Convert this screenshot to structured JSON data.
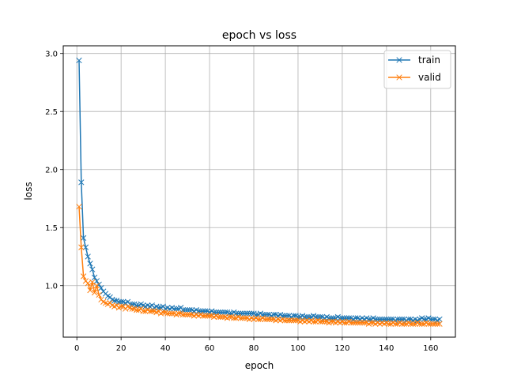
{
  "colors": {
    "train": "#1f77b4",
    "valid": "#ff7f0e",
    "grid": "#b0b0b0"
  },
  "chart_data": {
    "type": "line",
    "title": "epoch vs loss",
    "xlabel": "epoch",
    "ylabel": "loss",
    "xlim": [
      -6.15,
      171.15
    ],
    "ylim": [
      0.556,
      3.066
    ],
    "xticks": [
      0,
      20,
      40,
      60,
      80,
      100,
      120,
      140,
      160
    ],
    "yticks": [
      1.0,
      1.5,
      2.0,
      2.5,
      3.0
    ],
    "xtick_labels": [
      "0",
      "20",
      "40",
      "60",
      "80",
      "100",
      "120",
      "140",
      "160"
    ],
    "ytick_labels": [
      "1.0",
      "1.5",
      "2.0",
      "2.5",
      "3.0"
    ],
    "grid": true,
    "legend": "top-right",
    "marker": "x",
    "x": [
      1,
      2,
      3,
      4,
      5,
      6,
      7,
      8,
      9,
      10,
      11,
      12,
      13,
      14,
      15,
      16,
      17,
      18,
      19,
      20,
      21,
      22,
      23,
      24,
      25,
      26,
      27,
      28,
      29,
      30,
      31,
      32,
      33,
      34,
      35,
      36,
      37,
      38,
      39,
      40,
      41,
      42,
      43,
      44,
      45,
      46,
      47,
      48,
      49,
      50,
      51,
      52,
      53,
      54,
      55,
      56,
      57,
      58,
      59,
      60,
      61,
      62,
      63,
      64,
      65,
      66,
      67,
      68,
      69,
      70,
      71,
      72,
      73,
      74,
      75,
      76,
      77,
      78,
      79,
      80,
      81,
      82,
      83,
      84,
      85,
      86,
      87,
      88,
      89,
      90,
      91,
      92,
      93,
      94,
      95,
      96,
      97,
      98,
      99,
      100,
      101,
      102,
      103,
      104,
      105,
      106,
      107,
      108,
      109,
      110,
      111,
      112,
      113,
      114,
      115,
      116,
      117,
      118,
      119,
      120,
      121,
      122,
      123,
      124,
      125,
      126,
      127,
      128,
      129,
      130,
      131,
      132,
      133,
      134,
      135,
      136,
      137,
      138,
      139,
      140,
      141,
      142,
      143,
      144,
      145,
      146,
      147,
      148,
      149,
      150,
      151,
      152,
      153,
      154,
      155,
      156,
      157,
      158,
      159,
      160,
      161,
      162,
      163,
      164
    ],
    "series": [
      {
        "name": "train",
        "values": [
          2.94,
          1.89,
          1.41,
          1.33,
          1.25,
          1.19,
          1.14,
          1.07,
          1.04,
          1.01,
          0.98,
          0.95,
          0.93,
          0.91,
          0.9,
          0.88,
          0.87,
          0.87,
          0.86,
          0.86,
          0.86,
          0.85,
          0.86,
          0.84,
          0.84,
          0.84,
          0.83,
          0.83,
          0.84,
          0.83,
          0.82,
          0.83,
          0.82,
          0.83,
          0.81,
          0.82,
          0.81,
          0.81,
          0.82,
          0.8,
          0.81,
          0.8,
          0.81,
          0.8,
          0.8,
          0.8,
          0.81,
          0.79,
          0.79,
          0.79,
          0.79,
          0.79,
          0.78,
          0.79,
          0.78,
          0.78,
          0.78,
          0.78,
          0.78,
          0.77,
          0.78,
          0.77,
          0.77,
          0.77,
          0.77,
          0.77,
          0.77,
          0.77,
          0.76,
          0.76,
          0.77,
          0.76,
          0.76,
          0.76,
          0.76,
          0.76,
          0.76,
          0.76,
          0.76,
          0.76,
          0.75,
          0.75,
          0.76,
          0.75,
          0.75,
          0.75,
          0.75,
          0.74,
          0.75,
          0.75,
          0.74,
          0.75,
          0.74,
          0.74,
          0.74,
          0.74,
          0.73,
          0.74,
          0.74,
          0.73,
          0.73,
          0.74,
          0.73,
          0.73,
          0.73,
          0.73,
          0.74,
          0.73,
          0.73,
          0.73,
          0.73,
          0.72,
          0.73,
          0.72,
          0.72,
          0.72,
          0.72,
          0.73,
          0.72,
          0.72,
          0.72,
          0.72,
          0.72,
          0.72,
          0.71,
          0.72,
          0.72,
          0.71,
          0.72,
          0.71,
          0.72,
          0.71,
          0.71,
          0.72,
          0.71,
          0.71,
          0.71,
          0.71,
          0.71,
          0.71,
          0.71,
          0.71,
          0.71,
          0.7,
          0.71,
          0.71,
          0.71,
          0.71,
          0.7,
          0.71,
          0.71,
          0.7,
          0.71,
          0.7,
          0.71,
          0.72,
          0.71,
          0.71,
          0.72,
          0.71,
          0.71,
          0.71,
          0.7,
          0.71
        ]
      },
      {
        "name": "valid",
        "values": [
          1.68,
          1.33,
          1.08,
          1.04,
          1.02,
          0.96,
          1.03,
          0.94,
          1.0,
          0.92,
          0.88,
          0.86,
          0.85,
          0.84,
          0.85,
          0.83,
          0.82,
          0.83,
          0.81,
          0.82,
          0.82,
          0.8,
          0.82,
          0.81,
          0.8,
          0.8,
          0.79,
          0.79,
          0.8,
          0.78,
          0.78,
          0.79,
          0.78,
          0.78,
          0.78,
          0.77,
          0.78,
          0.76,
          0.77,
          0.77,
          0.76,
          0.76,
          0.76,
          0.76,
          0.75,
          0.76,
          0.76,
          0.75,
          0.75,
          0.75,
          0.75,
          0.75,
          0.74,
          0.75,
          0.74,
          0.75,
          0.74,
          0.74,
          0.74,
          0.74,
          0.74,
          0.73,
          0.74,
          0.73,
          0.73,
          0.73,
          0.73,
          0.72,
          0.73,
          0.73,
          0.72,
          0.72,
          0.73,
          0.72,
          0.72,
          0.72,
          0.72,
          0.71,
          0.72,
          0.71,
          0.72,
          0.71,
          0.71,
          0.72,
          0.71,
          0.71,
          0.71,
          0.71,
          0.71,
          0.7,
          0.71,
          0.7,
          0.71,
          0.7,
          0.7,
          0.7,
          0.7,
          0.7,
          0.7,
          0.7,
          0.69,
          0.7,
          0.69,
          0.7,
          0.69,
          0.7,
          0.69,
          0.69,
          0.7,
          0.69,
          0.69,
          0.69,
          0.69,
          0.68,
          0.69,
          0.69,
          0.68,
          0.69,
          0.68,
          0.69,
          0.68,
          0.68,
          0.69,
          0.68,
          0.68,
          0.68,
          0.68,
          0.68,
          0.68,
          0.68,
          0.68,
          0.67,
          0.68,
          0.68,
          0.67,
          0.68,
          0.67,
          0.68,
          0.67,
          0.68,
          0.67,
          0.67,
          0.68,
          0.67,
          0.67,
          0.68,
          0.67,
          0.67,
          0.67,
          0.68,
          0.67,
          0.67,
          0.67,
          0.68,
          0.67,
          0.67,
          0.67,
          0.68,
          0.67,
          0.67,
          0.67,
          0.67,
          0.67,
          0.67
        ]
      }
    ]
  }
}
